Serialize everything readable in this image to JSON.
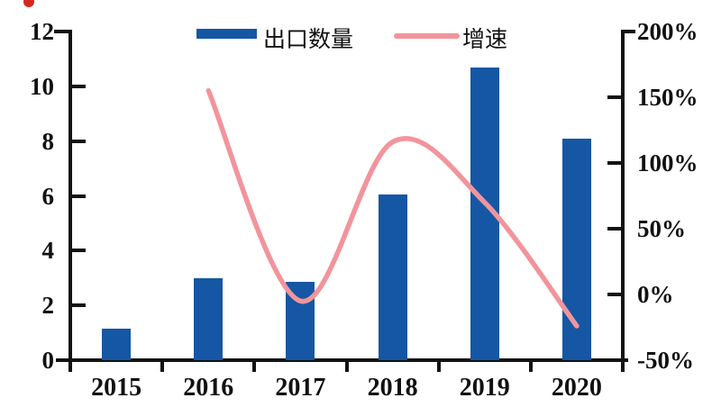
{
  "page": {
    "background": "#ffffff"
  },
  "decorations": {
    "corner_mark_color": "#d3281e"
  },
  "legend": {
    "items": [
      {
        "label": "出口数量",
        "type": "bar",
        "color": "#1557a4"
      },
      {
        "label": "增速",
        "type": "line",
        "color": "#f2949c"
      }
    ]
  },
  "chart_data": {
    "type": "bar+line combo",
    "categories": [
      "2015",
      "2016",
      "2017",
      "2018",
      "2019",
      "2020"
    ],
    "series": [
      {
        "name": "出口数量",
        "type": "bar",
        "axis": "left",
        "color": "#1557a4",
        "values": [
          1.15,
          3.0,
          2.85,
          6.05,
          10.7,
          8.1
        ]
      },
      {
        "name": "增速",
        "type": "line",
        "axis": "right",
        "color": "#f2949c",
        "unit": "%",
        "values": [
          null,
          155,
          -5,
          116,
          70,
          -24
        ]
      }
    ],
    "left_axis": {
      "min": 0,
      "max": 12,
      "step": 2,
      "tick_labels": [
        "12",
        "10",
        "8",
        "6",
        "4",
        "2",
        "0"
      ]
    },
    "right_axis": {
      "min": -50,
      "max": 200,
      "step": 50,
      "tick_labels": [
        "200%",
        "150%",
        "100%",
        "50%",
        "0%",
        "-50%"
      ]
    },
    "x_tick_labels": [
      "2015",
      "2016",
      "2017",
      "2018",
      "2019",
      "2020"
    ],
    "grid": false,
    "legend_position": "top"
  }
}
